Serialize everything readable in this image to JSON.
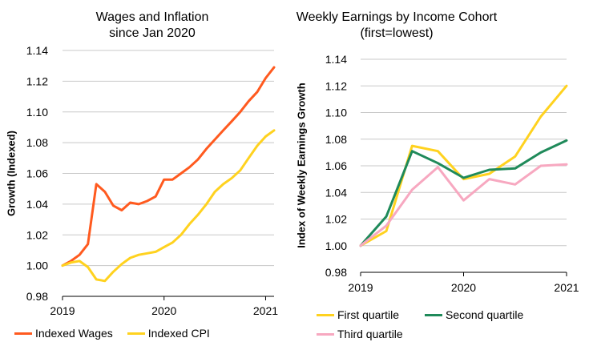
{
  "chart_data": [
    {
      "type": "line",
      "title": "Wages and Inflation",
      "subtitle": "since Jan 2020",
      "ylabel": "Growth (Indexed)",
      "xlabel": "",
      "ylim": [
        0.98,
        1.14
      ],
      "yticks": [
        "0.98",
        "1.00",
        "1.02",
        "1.04",
        "1.06",
        "1.08",
        "1.10",
        "1.12",
        "1.14"
      ],
      "xlim": [
        2019,
        2021.083
      ],
      "xticks": [
        {
          "value": 2019,
          "label": "2019"
        },
        {
          "value": 2020,
          "label": "2020"
        },
        {
          "value": 2021,
          "label": "2021"
        }
      ],
      "grid": true,
      "legend": "bottom",
      "series": [
        {
          "name": "Indexed Wages",
          "color": "#ff5a1f",
          "x": [
            2019.0,
            2019.083,
            2019.167,
            2019.25,
            2019.333,
            2019.417,
            2019.5,
            2019.583,
            2019.667,
            2019.75,
            2019.833,
            2019.917,
            2020.0,
            2020.083,
            2020.167,
            2020.25,
            2020.333,
            2020.417,
            2020.5,
            2020.583,
            2020.667,
            2020.75,
            2020.833,
            2020.917,
            2021.0,
            2021.083
          ],
          "values": [
            1.0,
            1.003,
            1.007,
            1.014,
            1.053,
            1.048,
            1.039,
            1.036,
            1.041,
            1.04,
            1.042,
            1.045,
            1.056,
            1.056,
            1.06,
            1.064,
            1.069,
            1.076,
            1.082,
            1.088,
            1.094,
            1.1,
            1.107,
            1.113,
            1.122,
            1.129
          ]
        },
        {
          "name": "Indexed CPI",
          "color": "#ffd21f",
          "x": [
            2019.0,
            2019.083,
            2019.167,
            2019.25,
            2019.333,
            2019.417,
            2019.5,
            2019.583,
            2019.667,
            2019.75,
            2019.833,
            2019.917,
            2020.0,
            2020.083,
            2020.167,
            2020.25,
            2020.333,
            2020.417,
            2020.5,
            2020.583,
            2020.667,
            2020.75,
            2020.833,
            2020.917,
            2021.0,
            2021.083
          ],
          "values": [
            1.0,
            1.002,
            1.003,
            0.999,
            0.991,
            0.99,
            0.996,
            1.001,
            1.005,
            1.007,
            1.008,
            1.009,
            1.012,
            1.015,
            1.02,
            1.027,
            1.033,
            1.04,
            1.048,
            1.053,
            1.057,
            1.062,
            1.07,
            1.078,
            1.084,
            1.088
          ]
        }
      ]
    },
    {
      "type": "line",
      "title": "Weekly Earnings by Income Cohort",
      "subtitle": "(first=lowest)",
      "ylabel": "Index of Weekly Earnings Growth",
      "xlabel": "",
      "ylim": [
        0.98,
        1.14
      ],
      "yticks": [
        "0.98",
        "1.00",
        "1.02",
        "1.04",
        "1.06",
        "1.08",
        "1.10",
        "1.12",
        "1.14"
      ],
      "xlim": [
        2019,
        2021
      ],
      "xticks": [
        {
          "value": 2019,
          "label": "2019"
        },
        {
          "value": 2020,
          "label": "2020"
        },
        {
          "value": 2021,
          "label": "2021"
        }
      ],
      "grid": true,
      "legend": "bottom",
      "series": [
        {
          "name": "First quartile",
          "color": "#ffd21f",
          "x": [
            2019.0,
            2019.25,
            2019.5,
            2019.75,
            2020.0,
            2020.25,
            2020.5,
            2020.75,
            2021.0
          ],
          "values": [
            1.0,
            1.011,
            1.075,
            1.071,
            1.05,
            1.054,
            1.067,
            1.097,
            1.12
          ]
        },
        {
          "name": "Second quartile",
          "color": "#1f8a5a",
          "x": [
            2019.0,
            2019.25,
            2019.5,
            2019.75,
            2020.0,
            2020.25,
            2020.5,
            2020.75,
            2021.0
          ],
          "values": [
            1.0,
            1.022,
            1.071,
            1.062,
            1.051,
            1.057,
            1.058,
            1.07,
            1.079
          ]
        },
        {
          "name": "Third quartile",
          "color": "#f7a8c0",
          "x": [
            2019.0,
            2019.25,
            2019.5,
            2019.75,
            2020.0,
            2020.25,
            2020.5,
            2020.75,
            2021.0
          ],
          "values": [
            1.0,
            1.015,
            1.042,
            1.059,
            1.034,
            1.05,
            1.046,
            1.06,
            1.061
          ]
        }
      ]
    }
  ]
}
